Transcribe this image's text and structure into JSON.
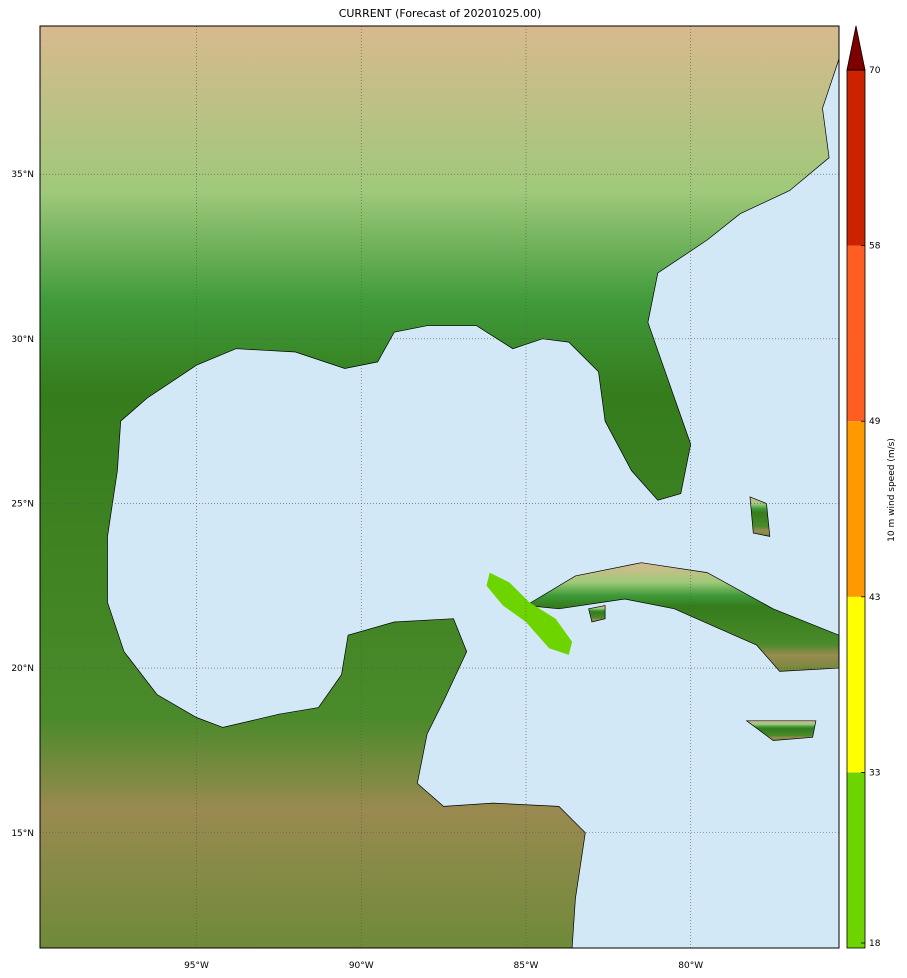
{
  "title": "CURRENT (Forecast of 20201025.00)",
  "map": {
    "extent": {
      "lon": [
        -99.75,
        -75.5
      ],
      "lat": [
        11.5,
        39.5
      ]
    },
    "ocean_color": "#d2e8f6",
    "lon_ticks": [
      {
        "value": -95,
        "label": "95°W"
      },
      {
        "value": -90,
        "label": "90°W"
      },
      {
        "value": -85,
        "label": "85°W"
      },
      {
        "value": -80,
        "label": "80°W"
      }
    ],
    "lat_ticks": [
      {
        "value": 15,
        "label": "15°N"
      },
      {
        "value": 20,
        "label": "20°N"
      },
      {
        "value": 25,
        "label": "25°N"
      },
      {
        "value": 30,
        "label": "30°N"
      },
      {
        "value": 35,
        "label": "35°N"
      }
    ],
    "land": [
      {
        "name": "mainland",
        "coords": [
          [
            -99.75,
            39.5
          ],
          [
            -75.5,
            39.5
          ],
          [
            -75.5,
            38.5
          ],
          [
            -76,
            37
          ],
          [
            -75.8,
            35.5
          ],
          [
            -77,
            34.5
          ],
          [
            -78.5,
            33.8
          ],
          [
            -79.5,
            33
          ],
          [
            -81,
            32
          ],
          [
            -81.3,
            30.5
          ],
          [
            -80.6,
            28.5
          ],
          [
            -80,
            26.8
          ],
          [
            -80.3,
            25.3
          ],
          [
            -81,
            25.1
          ],
          [
            -81.8,
            26
          ],
          [
            -82.6,
            27.5
          ],
          [
            -82.8,
            29
          ],
          [
            -83.7,
            29.9
          ],
          [
            -84.5,
            30
          ],
          [
            -85.4,
            29.7
          ],
          [
            -86.5,
            30.4
          ],
          [
            -88,
            30.4
          ],
          [
            -89,
            30.2
          ],
          [
            -89.5,
            29.3
          ],
          [
            -90.5,
            29.1
          ],
          [
            -92,
            29.6
          ],
          [
            -93.8,
            29.7
          ],
          [
            -95,
            29.2
          ],
          [
            -96.5,
            28.2
          ],
          [
            -97.3,
            27.5
          ],
          [
            -97.4,
            26
          ],
          [
            -97.7,
            24
          ],
          [
            -97.7,
            22
          ],
          [
            -97.2,
            20.5
          ],
          [
            -96.2,
            19.2
          ],
          [
            -95,
            18.5
          ],
          [
            -94.2,
            18.2
          ],
          [
            -92.5,
            18.6
          ],
          [
            -91.3,
            18.8
          ],
          [
            -90.6,
            19.8
          ],
          [
            -90.4,
            21
          ],
          [
            -89,
            21.4
          ],
          [
            -87.2,
            21.5
          ],
          [
            -86.8,
            20.5
          ],
          [
            -87.5,
            19
          ],
          [
            -88,
            18
          ],
          [
            -88.3,
            16.5
          ],
          [
            -87.5,
            15.8
          ],
          [
            -86,
            15.9
          ],
          [
            -84,
            15.8
          ],
          [
            -83.2,
            15
          ],
          [
            -83.5,
            13
          ],
          [
            -83.6,
            11.5
          ],
          [
            -99.75,
            11.5
          ]
        ]
      },
      {
        "name": "cuba",
        "coords": [
          [
            -85,
            21.9
          ],
          [
            -83.5,
            22.8
          ],
          [
            -81.5,
            23.2
          ],
          [
            -79.5,
            22.9
          ],
          [
            -77.5,
            21.8
          ],
          [
            -75.5,
            21
          ],
          [
            -75.5,
            20
          ],
          [
            -77.3,
            19.9
          ],
          [
            -78,
            20.7
          ],
          [
            -80.5,
            21.8
          ],
          [
            -82,
            22.1
          ],
          [
            -84,
            21.8
          ]
        ]
      },
      {
        "name": "jamaica",
        "coords": [
          [
            -78.3,
            18.4
          ],
          [
            -76.2,
            18.4
          ],
          [
            -76.3,
            17.9
          ],
          [
            -77.5,
            17.8
          ]
        ]
      },
      {
        "name": "isla-de-la-juventud",
        "coords": [
          [
            -83.1,
            21.8
          ],
          [
            -82.6,
            21.9
          ],
          [
            -82.6,
            21.5
          ],
          [
            -83,
            21.4
          ]
        ]
      },
      {
        "name": "andros",
        "coords": [
          [
            -78.2,
            25.2
          ],
          [
            -77.7,
            25
          ],
          [
            -77.6,
            24
          ],
          [
            -78.1,
            24.1
          ]
        ]
      }
    ],
    "wind_area": {
      "color": "#6dd400",
      "coords": [
        [
          -86.1,
          22.9
        ],
        [
          -85.5,
          22.6
        ],
        [
          -84.9,
          22
        ],
        [
          -84.1,
          21.5
        ],
        [
          -83.6,
          20.8
        ],
        [
          -83.7,
          20.4
        ],
        [
          -84.3,
          20.6
        ],
        [
          -85,
          21.4
        ],
        [
          -85.7,
          21.9
        ],
        [
          -86.2,
          22.5
        ]
      ]
    }
  },
  "colorbar": {
    "label": "10 m wind speed (m/s)",
    "levels": [
      18,
      33,
      43,
      49,
      58,
      70
    ],
    "colors": [
      "#6dd400",
      "#ffff00",
      "#ff9900",
      "#ff5e22",
      "#cc2200"
    ],
    "extend_color": "#7f0000",
    "tick_labels": [
      "18",
      "33",
      "43",
      "49",
      "58",
      "70"
    ]
  }
}
